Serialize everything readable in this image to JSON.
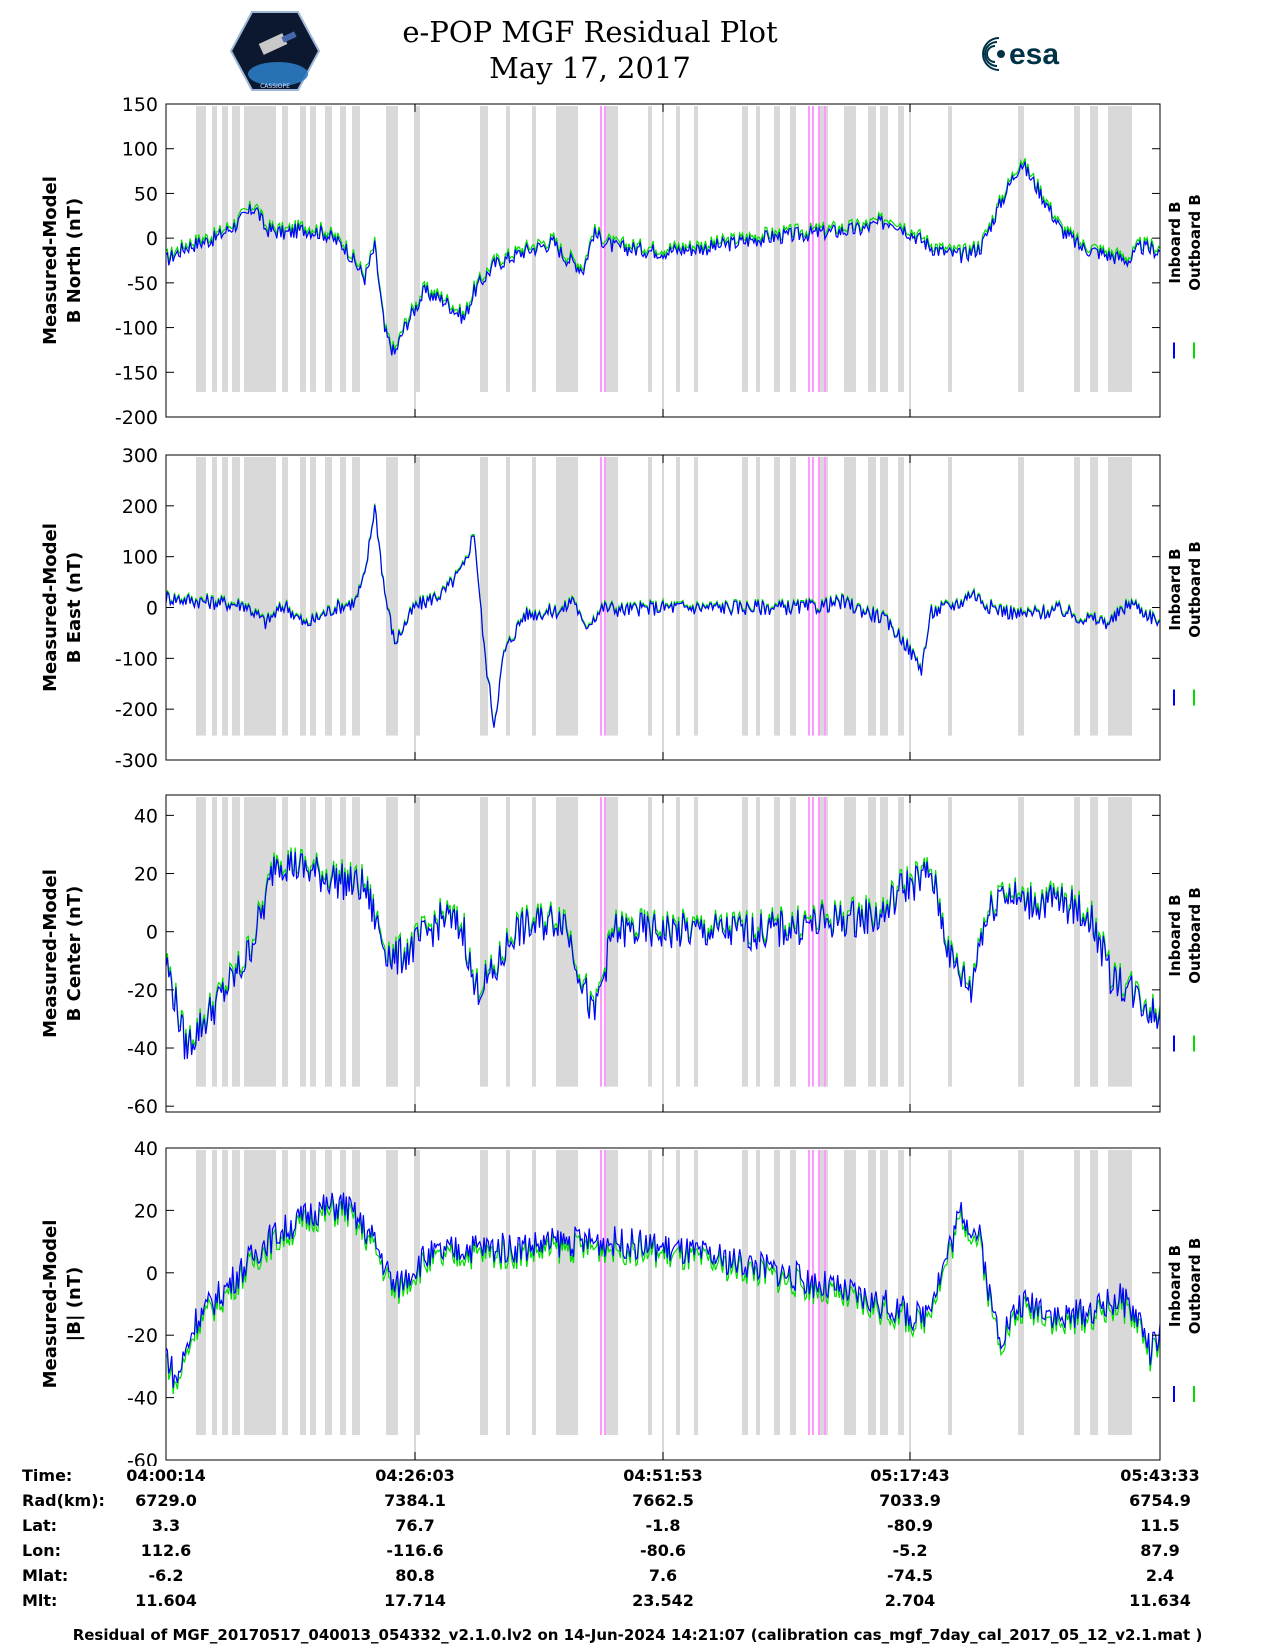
{
  "header": {
    "title_line1": "e-POP MGF Residual Plot",
    "title_line2": "May 17, 2017",
    "mission_logo_text": "CASSIOPE",
    "esa_logo_text": "esa"
  },
  "colors": {
    "inboard": "#0000ff",
    "outboard": "#00dd00",
    "gap_gray": "#d9d9d9",
    "gap_pink": "#ff99ff"
  },
  "chart_data": [
    {
      "type": "line",
      "id": "north",
      "ylabel": [
        "Measured-Model",
        "B North (nT)"
      ],
      "ylim": [
        -200,
        150
      ],
      "yticks": [
        150,
        100,
        50,
        0,
        -50,
        -100,
        -150,
        -200
      ],
      "legend": [
        "Inboard B",
        "Outboard B"
      ],
      "series": [
        {
          "name": "Inboard B",
          "keypoints": [
            [
              0,
              -25
            ],
            [
              0.02,
              -10
            ],
            [
              0.05,
              0
            ],
            [
              0.07,
              15
            ],
            [
              0.09,
              35
            ],
            [
              0.1,
              10
            ],
            [
              0.12,
              5
            ],
            [
              0.14,
              10
            ],
            [
              0.16,
              5
            ],
            [
              0.18,
              -10
            ],
            [
              0.2,
              -45
            ],
            [
              0.21,
              -10
            ],
            [
              0.22,
              -105
            ],
            [
              0.23,
              -130
            ],
            [
              0.24,
              -100
            ],
            [
              0.26,
              -60
            ],
            [
              0.28,
              -70
            ],
            [
              0.3,
              -90
            ],
            [
              0.31,
              -60
            ],
            [
              0.33,
              -30
            ],
            [
              0.36,
              -15
            ],
            [
              0.39,
              -5
            ],
            [
              0.4,
              -20
            ],
            [
              0.42,
              -35
            ],
            [
              0.43,
              5
            ],
            [
              0.45,
              -10
            ],
            [
              0.5,
              -15
            ],
            [
              0.55,
              -10
            ],
            [
              0.6,
              0
            ],
            [
              0.65,
              5
            ],
            [
              0.7,
              10
            ],
            [
              0.73,
              20
            ],
            [
              0.75,
              5
            ],
            [
              0.77,
              -10
            ],
            [
              0.78,
              -15
            ],
            [
              0.8,
              -20
            ],
            [
              0.82,
              -10
            ],
            [
              0.84,
              40
            ],
            [
              0.86,
              85
            ],
            [
              0.88,
              50
            ],
            [
              0.9,
              10
            ],
            [
              0.92,
              -10
            ],
            [
              0.95,
              -20
            ],
            [
              0.97,
              -25
            ],
            [
              0.98,
              -10
            ],
            [
              1.0,
              -15
            ]
          ]
        },
        {
          "name": "Outboard B",
          "offset": 4
        }
      ]
    },
    {
      "type": "line",
      "id": "east",
      "ylabel": [
        "Measured-Model",
        "B East (nT)"
      ],
      "ylim": [
        -300,
        300
      ],
      "yticks": [
        300,
        200,
        100,
        0,
        -100,
        -200,
        -300
      ],
      "legend": [
        "Inboard B",
        "Outboard B"
      ],
      "series": [
        {
          "name": "Inboard B",
          "keypoints": [
            [
              0,
              20
            ],
            [
              0.02,
              15
            ],
            [
              0.05,
              10
            ],
            [
              0.08,
              5
            ],
            [
              0.1,
              -30
            ],
            [
              0.12,
              5
            ],
            [
              0.14,
              -35
            ],
            [
              0.17,
              0
            ],
            [
              0.19,
              10
            ],
            [
              0.2,
              60
            ],
            [
              0.21,
              200
            ],
            [
              0.22,
              30
            ],
            [
              0.23,
              -70
            ],
            [
              0.25,
              0
            ],
            [
              0.28,
              30
            ],
            [
              0.3,
              80
            ],
            [
              0.31,
              150
            ],
            [
              0.32,
              -80
            ],
            [
              0.33,
              -230
            ],
            [
              0.34,
              -90
            ],
            [
              0.36,
              -15
            ],
            [
              0.4,
              -5
            ],
            [
              0.41,
              20
            ],
            [
              0.42,
              -40
            ],
            [
              0.44,
              0
            ],
            [
              0.46,
              -5
            ],
            [
              0.5,
              0
            ],
            [
              0.6,
              0
            ],
            [
              0.65,
              0
            ],
            [
              0.68,
              10
            ],
            [
              0.7,
              -5
            ],
            [
              0.72,
              -20
            ],
            [
              0.74,
              -60
            ],
            [
              0.76,
              -120
            ],
            [
              0.77,
              -10
            ],
            [
              0.8,
              10
            ],
            [
              0.81,
              30
            ],
            [
              0.83,
              0
            ],
            [
              0.86,
              -15
            ],
            [
              0.9,
              -5
            ],
            [
              0.92,
              -20
            ],
            [
              0.95,
              -30
            ],
            [
              0.97,
              10
            ],
            [
              1.0,
              -30
            ]
          ]
        },
        {
          "name": "Outboard B",
          "offset": 3
        }
      ]
    },
    {
      "type": "line",
      "id": "center",
      "ylabel": [
        "Measured-Model",
        "B Center (nT)"
      ],
      "ylim": [
        -62,
        47
      ],
      "yticks": [
        40,
        20,
        0,
        -20,
        -40,
        -60
      ],
      "legend": [
        "Inboard B",
        "Outboard B"
      ],
      "series": [
        {
          "name": "Inboard B",
          "keypoints": [
            [
              0,
              -10
            ],
            [
              0.02,
              -40
            ],
            [
              0.04,
              -30
            ],
            [
              0.06,
              -20
            ],
            [
              0.08,
              -10
            ],
            [
              0.1,
              10
            ],
            [
              0.11,
              25
            ],
            [
              0.15,
              20
            ],
            [
              0.2,
              15
            ],
            [
              0.22,
              -5
            ],
            [
              0.23,
              -10
            ],
            [
              0.25,
              -5
            ],
            [
              0.28,
              5
            ],
            [
              0.3,
              0
            ],
            [
              0.31,
              -20
            ],
            [
              0.33,
              -15
            ],
            [
              0.35,
              0
            ],
            [
              0.4,
              5
            ],
            [
              0.43,
              -30
            ],
            [
              0.45,
              0
            ],
            [
              0.5,
              0
            ],
            [
              0.6,
              0
            ],
            [
              0.7,
              5
            ],
            [
              0.72,
              5
            ],
            [
              0.74,
              15
            ],
            [
              0.77,
              20
            ],
            [
              0.78,
              5
            ],
            [
              0.79,
              -10
            ],
            [
              0.81,
              -20
            ],
            [
              0.82,
              0
            ],
            [
              0.84,
              15
            ],
            [
              0.86,
              10
            ],
            [
              0.9,
              10
            ],
            [
              0.93,
              5
            ],
            [
              0.95,
              -15
            ],
            [
              0.97,
              -20
            ],
            [
              1.0,
              -30
            ]
          ]
        },
        {
          "name": "Outboard B",
          "offset": 1.5
        }
      ]
    },
    {
      "type": "line",
      "id": "total",
      "ylabel": [
        "Measured-Model",
        "|B| (nT)"
      ],
      "ylim": [
        -60,
        40
      ],
      "yticks": [
        40,
        20,
        0,
        -20,
        -40,
        -60
      ],
      "legend": [
        "Inboard B",
        "Outboard B"
      ],
      "series": [
        {
          "name": "Inboard B",
          "keypoints": [
            [
              0,
              -25
            ],
            [
              0.01,
              -35
            ],
            [
              0.03,
              -15
            ],
            [
              0.06,
              -5
            ],
            [
              0.1,
              10
            ],
            [
              0.15,
              20
            ],
            [
              0.18,
              22
            ],
            [
              0.21,
              10
            ],
            [
              0.23,
              -5
            ],
            [
              0.26,
              5
            ],
            [
              0.3,
              8
            ],
            [
              0.35,
              8
            ],
            [
              0.4,
              10
            ],
            [
              0.45,
              10
            ],
            [
              0.5,
              8
            ],
            [
              0.55,
              5
            ],
            [
              0.6,
              2
            ],
            [
              0.65,
              -3
            ],
            [
              0.7,
              -8
            ],
            [
              0.74,
              -12
            ],
            [
              0.76,
              -15
            ],
            [
              0.78,
              0
            ],
            [
              0.8,
              20
            ],
            [
              0.82,
              10
            ],
            [
              0.83,
              -10
            ],
            [
              0.84,
              -20
            ],
            [
              0.86,
              -10
            ],
            [
              0.88,
              -10
            ],
            [
              0.9,
              -15
            ],
            [
              0.93,
              -12
            ],
            [
              0.96,
              -8
            ],
            [
              0.98,
              -15
            ],
            [
              0.99,
              -25
            ],
            [
              1.0,
              -20
            ]
          ]
        },
        {
          "name": "Outboard B",
          "offset": -2
        }
      ]
    }
  ],
  "time_table": {
    "row_labels": [
      "Time:",
      "Rad(km):",
      "Lat:",
      "Lon:",
      "Mlat:",
      "Mlt:"
    ],
    "columns": [
      {
        "values": [
          "04:00:14",
          "6729.0",
          "3.3",
          "112.6",
          "-6.2",
          "11.604"
        ]
      },
      {
        "values": [
          "04:26:03",
          "7384.1",
          "76.7",
          "-116.6",
          "80.8",
          "17.714"
        ]
      },
      {
        "values": [
          "04:51:53",
          "7662.5",
          "-1.8",
          "-80.6",
          "7.6",
          "23.542"
        ]
      },
      {
        "values": [
          "05:17:43",
          "7033.9",
          "-80.9",
          "-5.2",
          "-74.5",
          "2.704"
        ]
      },
      {
        "values": [
          "05:43:33",
          "6754.9",
          "11.5",
          "87.9",
          "2.4",
          "11.634"
        ]
      }
    ]
  },
  "footer_text": "Residual of MGF_20170517_040013_054332_v2.1.0.lv2 on 14-Jun-2024 14:21:07 (calibration cas_mgf_7day_cal_2017_05_12_v2.1.mat )"
}
